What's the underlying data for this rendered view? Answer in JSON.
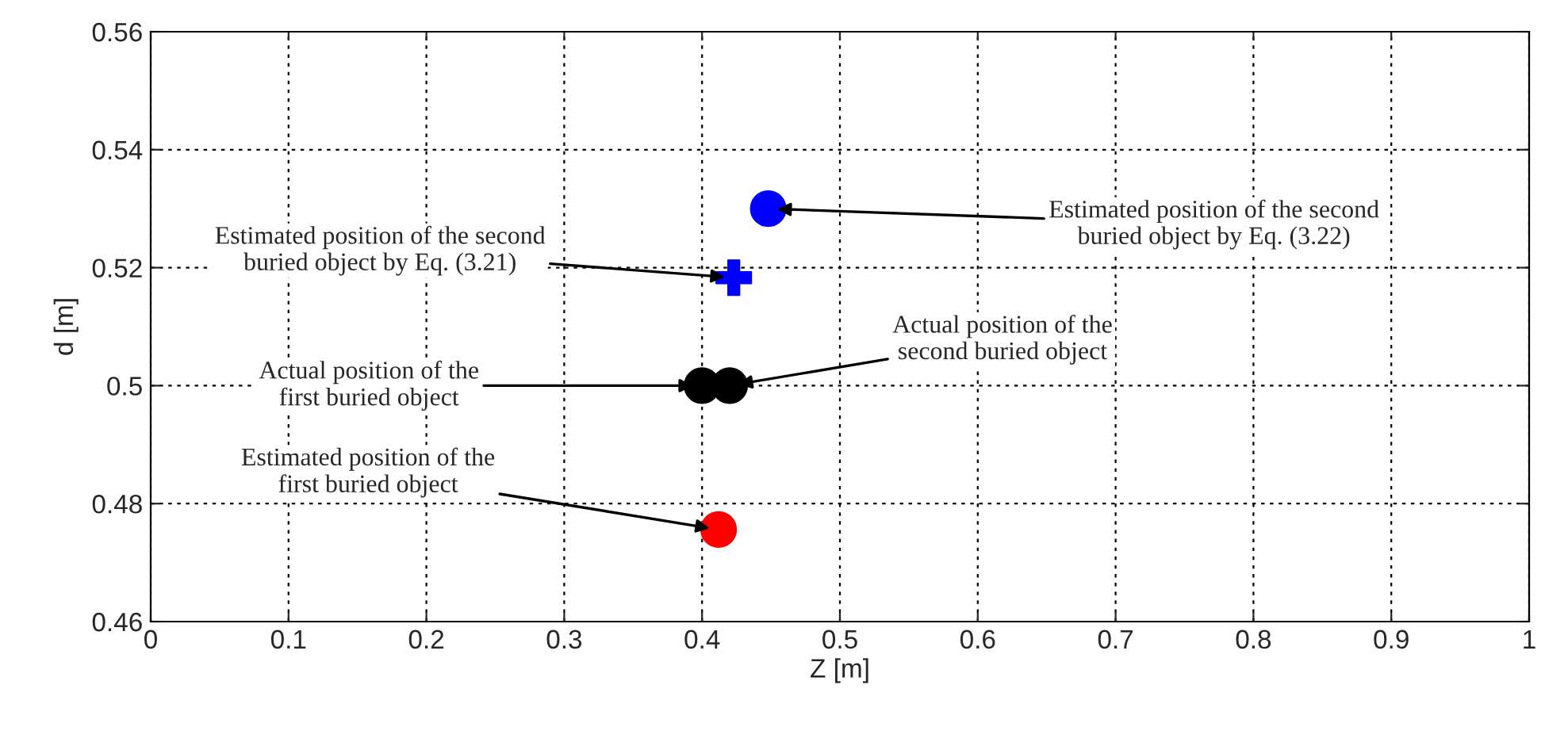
{
  "chart_data": {
    "type": "scatter",
    "xlabel": "Z [m]",
    "ylabel": "d [m]",
    "xlim": [
      0,
      1
    ],
    "ylim": [
      0.46,
      0.56
    ],
    "xticks": [
      0,
      0.1,
      0.2,
      0.3,
      0.4,
      0.5,
      0.6,
      0.7,
      0.8,
      0.9,
      1
    ],
    "yticks": [
      0.46,
      0.48,
      0.5,
      0.52,
      0.54,
      0.56
    ],
    "grid": true,
    "series": [
      {
        "color": "#0000ff",
        "marker": "circle",
        "x": [
          0.448
        ],
        "values": [
          0.53
        ]
      },
      {
        "color": "#0000ff",
        "marker": "cross",
        "x": [
          0.423
        ],
        "values": [
          0.5183
        ]
      },
      {
        "color": "#000000",
        "marker": "circle",
        "x": [
          0.4,
          0.42
        ],
        "values": [
          0.5,
          0.5
        ]
      },
      {
        "color": "#ff0000",
        "marker": "circle",
        "x": [
          0.412
        ],
        "values": [
          0.4756
        ]
      }
    ],
    "annotations": [
      {
        "text": "Estimated position of the second\nburied object by Eq. (3.21)",
        "x": 0.423,
        "y": 0.5183
      },
      {
        "text": "Estimated position of the second\nburied object by Eq. (3.22)",
        "x": 0.448,
        "y": 0.53
      },
      {
        "text": "Actual position of the\nfirst buried object",
        "x": 0.4,
        "y": 0.5
      },
      {
        "text": "Actual position of the\nsecond buried object",
        "x": 0.42,
        "y": 0.5
      },
      {
        "text": "Estimated position of the\nfirst buried object",
        "x": 0.412,
        "y": 0.4756
      }
    ]
  }
}
